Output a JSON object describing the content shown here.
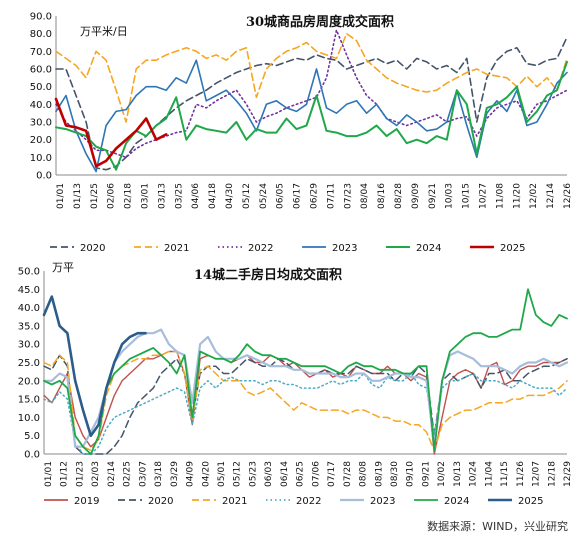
{
  "source": "数据来源：WIND，兴业研究",
  "chart_data": [
    {
      "type": "line",
      "title": "30城商品房周度成交面积",
      "unit": "万平米/日",
      "ylim": [
        0,
        90
      ],
      "yticks": [
        "0.0",
        "10.0",
        "20.0",
        "30.0",
        "40.0",
        "50.0",
        "60.0",
        "70.0",
        "80.0",
        "90.0"
      ],
      "xticks": [
        "01/01",
        "01/13",
        "01/25",
        "02/06",
        "02/18",
        "03/01",
        "03/13",
        "03/25",
        "04/06",
        "04/18",
        "04/30",
        "05/12",
        "05/24",
        "06/05",
        "06/17",
        "06/29",
        "07/11",
        "07/23",
        "08/04",
        "08/16",
        "08/28",
        "09/09",
        "09/21",
        "10/03",
        "10/15",
        "10/27",
        "11/08",
        "11/20",
        "12/02",
        "12/14",
        "12/26"
      ],
      "npoints": 52,
      "legend": "bottom",
      "series": [
        {
          "name": "2020",
          "color": "#44546a",
          "style": "dash",
          "width": 1.6,
          "values": [
            60,
            60,
            45,
            30,
            4,
            3,
            5,
            10,
            18,
            22,
            28,
            33,
            38,
            42,
            45,
            48,
            52,
            55,
            58,
            60,
            62,
            63,
            62,
            64,
            66,
            65,
            68,
            66,
            65,
            60,
            62,
            64,
            66,
            63,
            65,
            60,
            66,
            64,
            60,
            62,
            58,
            66,
            30,
            55,
            65,
            70,
            72,
            63,
            62,
            65,
            66,
            78
          ]
        },
        {
          "name": "2021",
          "color": "#f5a623",
          "style": "dash",
          "width": 1.6,
          "values": [
            70,
            66,
            62,
            55,
            70,
            65,
            48,
            30,
            60,
            65,
            65,
            68,
            70,
            72,
            70,
            66,
            68,
            65,
            70,
            72,
            44,
            60,
            66,
            70,
            72,
            75,
            70,
            68,
            66,
            80,
            76,
            65,
            60,
            55,
            52,
            50,
            48,
            47,
            48,
            52,
            55,
            58,
            60,
            57,
            56,
            55,
            50,
            56,
            50,
            55,
            48,
            66
          ]
        },
        {
          "name": "2022",
          "color": "#7030a0",
          "style": "dot",
          "width": 1.6,
          "values": [
            40,
            30,
            25,
            20,
            14,
            14,
            12,
            10,
            15,
            18,
            20,
            22,
            24,
            25,
            40,
            38,
            42,
            45,
            48,
            40,
            30,
            33,
            35,
            38,
            40,
            42,
            44,
            55,
            82,
            68,
            55,
            45,
            40,
            32,
            30,
            28,
            30,
            32,
            34,
            30,
            32,
            33,
            22,
            32,
            38,
            40,
            42,
            32,
            40,
            42,
            45,
            48
          ]
        },
        {
          "name": "2023",
          "color": "#2e75b6",
          "style": "solid",
          "width": 1.6,
          "values": [
            36,
            45,
            25,
            12,
            2,
            28,
            36,
            37,
            45,
            50,
            50,
            48,
            55,
            52,
            65,
            42,
            45,
            48,
            42,
            35,
            25,
            40,
            42,
            38,
            36,
            40,
            60,
            38,
            35,
            40,
            42,
            35,
            40,
            32,
            28,
            34,
            30,
            25,
            26,
            30,
            48,
            28,
            10,
            35,
            42,
            36,
            48,
            28,
            30,
            40,
            52,
            58
          ]
        },
        {
          "name": "2024",
          "color": "#1fa84a",
          "style": "solid",
          "width": 2.0,
          "values": [
            27,
            26,
            24,
            22,
            16,
            14,
            3,
            18,
            25,
            22,
            28,
            32,
            44,
            20,
            28,
            26,
            25,
            24,
            30,
            20,
            26,
            24,
            24,
            32,
            26,
            28,
            45,
            25,
            24,
            22,
            22,
            24,
            28,
            22,
            26,
            18,
            20,
            18,
            22,
            20,
            48,
            40,
            12,
            38,
            40,
            44,
            50,
            30,
            36,
            45,
            48,
            64
          ]
        },
        {
          "name": "2025",
          "color": "#c00000",
          "style": "solid",
          "width": 2.6,
          "values": [
            43,
            28,
            27,
            25,
            5,
            8,
            15,
            20,
            25,
            32,
            20,
            23
          ]
        }
      ]
    },
    {
      "type": "line",
      "title": "14城二手房日均成交面积",
      "unit": "万平",
      "ylim": [
        0,
        50
      ],
      "yticks": [
        "0.0",
        "5.0",
        "10.0",
        "15.0",
        "20.0",
        "25.0",
        "30.0",
        "35.0",
        "40.0",
        "45.0",
        "50.0"
      ],
      "xticks": [
        "01/01",
        "01/12",
        "01/23",
        "02/03",
        "02/14",
        "02/25",
        "03/07",
        "03/18",
        "03/29",
        "04/09",
        "04/20",
        "05/01",
        "05/12",
        "05/23",
        "06/03",
        "06/14",
        "06/25",
        "07/06",
        "07/17",
        "07/28",
        "08/08",
        "08/19",
        "08/30",
        "09/10",
        "09/21",
        "10/02",
        "10/13",
        "10/24",
        "11/04",
        "11/15",
        "11/26",
        "12/07",
        "12/18",
        "12/29"
      ],
      "npoints": 68,
      "legend": "bottom",
      "series": [
        {
          "name": "2019",
          "color": "#c0504d",
          "style": "solid",
          "width": 1.4,
          "values": [
            16,
            14,
            18,
            22,
            10,
            5,
            2,
            4,
            10,
            16,
            20,
            22,
            24,
            26,
            26,
            27,
            28,
            28,
            22,
            8,
            26,
            27,
            26,
            26,
            25,
            26,
            27,
            25,
            25,
            27,
            26,
            24,
            25,
            23,
            21,
            22,
            23,
            21,
            22,
            21,
            24,
            23,
            22,
            22,
            24,
            22,
            22,
            20,
            22,
            21,
            0,
            10,
            20,
            22,
            23,
            22,
            18,
            24,
            25,
            19,
            20,
            23,
            24,
            24,
            25,
            25,
            25,
            26
          ]
        },
        {
          "name": "2020",
          "color": "#44546a",
          "style": "dash",
          "width": 1.5,
          "values": [
            24,
            23,
            27,
            24,
            2,
            0,
            0,
            0,
            0,
            2,
            5,
            10,
            14,
            16,
            18,
            22,
            24,
            26,
            22,
            10,
            22,
            24,
            24,
            22,
            22,
            24,
            26,
            25,
            24,
            24,
            26,
            25,
            23,
            23,
            22,
            22,
            23,
            22,
            22,
            22,
            24,
            23,
            22,
            22,
            22,
            20,
            22,
            21,
            24,
            22,
            5,
            20,
            22,
            20,
            21,
            22,
            18,
            22,
            22,
            23,
            20,
            20,
            22,
            23,
            24,
            24,
            25,
            26
          ]
        },
        {
          "name": "2021",
          "color": "#f5a623",
          "style": "dash",
          "width": 1.5,
          "values": [
            25,
            24,
            27,
            25,
            5,
            2,
            1,
            4,
            16,
            22,
            24,
            25,
            26,
            26,
            27,
            27,
            28,
            28,
            22,
            9,
            23,
            24,
            22,
            20,
            20,
            20,
            17,
            16,
            17,
            18,
            16,
            14,
            12,
            14,
            13,
            12,
            12,
            12,
            12,
            11,
            12,
            12,
            11,
            10,
            10,
            9,
            9,
            8,
            8,
            6,
            1,
            8,
            10,
            11,
            12,
            12,
            13,
            14,
            14,
            14,
            15,
            15,
            16,
            16,
            16,
            17,
            18,
            20
          ]
        },
        {
          "name": "2022",
          "color": "#4bacc6",
          "style": "dot",
          "width": 1.5,
          "values": [
            15,
            14,
            17,
            15,
            3,
            0,
            0,
            2,
            7,
            10,
            11,
            12,
            13,
            14,
            15,
            16,
            17,
            18,
            17,
            8,
            18,
            20,
            18,
            20,
            21,
            20,
            20,
            20,
            19,
            20,
            20,
            19,
            19,
            18,
            18,
            18,
            19,
            20,
            19,
            20,
            20,
            22,
            19,
            18,
            21,
            20,
            20,
            22,
            19,
            18,
            5,
            18,
            20,
            20,
            21,
            22,
            20,
            20,
            20,
            19,
            18,
            20,
            19,
            18,
            18,
            18,
            16,
            18
          ]
        },
        {
          "name": "2023",
          "color": "#a6bddb",
          "style": "solid",
          "width": 2.2,
          "values": [
            20,
            20,
            22,
            21,
            2,
            2,
            6,
            10,
            18,
            25,
            28,
            30,
            32,
            33,
            33,
            34,
            30,
            28,
            27,
            14,
            30,
            32,
            28,
            26,
            26,
            26,
            27,
            26,
            25,
            24,
            24,
            24,
            23,
            23,
            22,
            22,
            22,
            22,
            21,
            21,
            22,
            22,
            20,
            20,
            21,
            22,
            22,
            21,
            21,
            20,
            2,
            20,
            27,
            28,
            27,
            26,
            24,
            24,
            24,
            23,
            22,
            24,
            25,
            25,
            26,
            25,
            24,
            25
          ]
        },
        {
          "name": "2024",
          "color": "#1fa84a",
          "style": "solid",
          "width": 1.8,
          "values": [
            20,
            19,
            20,
            18,
            5,
            2,
            0,
            5,
            18,
            22,
            24,
            26,
            27,
            28,
            29,
            27,
            25,
            22,
            27,
            10,
            28,
            27,
            26,
            26,
            25,
            27,
            30,
            28,
            27,
            27,
            26,
            26,
            25,
            24,
            24,
            24,
            24,
            23,
            22,
            24,
            25,
            24,
            24,
            23,
            23,
            23,
            22,
            22,
            24,
            24,
            1,
            20,
            28,
            30,
            32,
            33,
            33,
            32,
            32,
            33,
            34,
            34,
            45,
            38,
            36,
            35,
            38,
            37
          ]
        },
        {
          "name": "2025",
          "color": "#2b5c8a",
          "style": "solid",
          "width": 2.6,
          "values": [
            38,
            43,
            35,
            33,
            20,
            12,
            5,
            8,
            18,
            25,
            30,
            32,
            33,
            33
          ]
        }
      ]
    }
  ]
}
